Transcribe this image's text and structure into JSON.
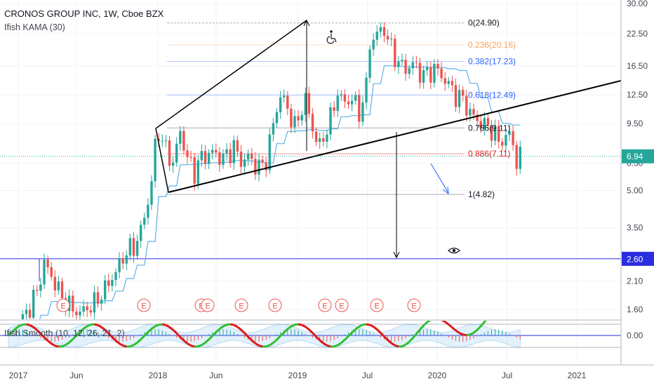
{
  "header": {
    "symbol_line": "CRONOS GROUP INC, 1W, Cboe BZX",
    "indicator_1": "Ifish KAMA (30)",
    "indicator_2": "Ifish Smooth (10, 12, 26, 21, 2)"
  },
  "colors": {
    "up": "#26a69a",
    "down": "#ef5350",
    "kama": "#5db0e8",
    "trend": "#000000",
    "hline": "#2a2ee0",
    "last_price_bg": "#26a69a",
    "hline_label_bg": "#2a2ee0",
    "fib_236": "#f7a35c",
    "fib_382": "#2962ff",
    "fib_618": "#2962ff",
    "fib_786": "#131722",
    "fib_886": "#e01818",
    "fib_1": "#131722",
    "fib_0": "#131722",
    "earnings": "#ef5350"
  },
  "chart_data": [
    {
      "type": "candlestick",
      "title": "CRONOS GROUP INC, 1W, Cboe BZX",
      "scale": "log",
      "y_ticks": [
        "30.00",
        "22.50",
        "16.50",
        "12.50",
        "9.50",
        "6.50",
        "5.00",
        "3.50",
        "2.60",
        "2.10",
        "1.60"
      ],
      "x_ticks": [
        "2017",
        "Jun",
        "2018",
        "Jun",
        "2019",
        "Jul",
        "2020",
        "Jul",
        "2021"
      ],
      "last_price": "6.94",
      "horizontal_line": "2.60",
      "fib_levels": [
        {
          "label": "0(24.90)",
          "value": 24.9
        },
        {
          "label": "0.236(20.16)",
          "value": 20.16
        },
        {
          "label": "0.382(17.23)",
          "value": 17.23
        },
        {
          "label": "0.618(12.49)",
          "value": 12.49
        },
        {
          "label": "0.786(9.11)",
          "value": 9.11
        },
        {
          "label": "0.886(7.11)",
          "value": 7.11
        },
        {
          "label": "1(4.82)",
          "value": 4.82
        }
      ],
      "earnings_markers": [
        "E",
        "E",
        "E",
        "E",
        "E",
        "E",
        "E",
        "E",
        "E",
        "E",
        "E"
      ],
      "series": [
        {
          "name": "Ifish KAMA (30)"
        }
      ]
    },
    {
      "type": "line",
      "title": "Ifish Smooth (10, 12, 26, 21, 2)",
      "y_ticks": [
        "0.00"
      ]
    }
  ]
}
